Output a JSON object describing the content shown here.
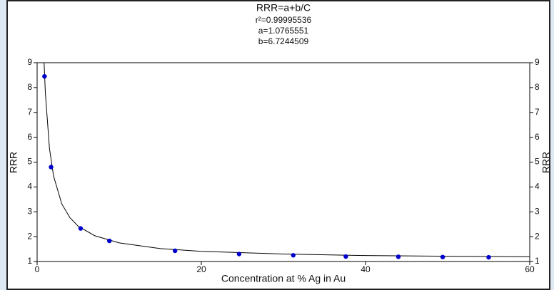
{
  "chart_data": {
    "type": "scatter",
    "title": "RRR=a+b/C",
    "annotations": [
      "r²=0.99995536",
      "a=1.0765551",
      "b=6.7244509"
    ],
    "x_label": "Concentration at % Ag  in Au",
    "y_label": "RRR",
    "y2_label": "RRR",
    "points": {
      "color": "#0000cc",
      "x": [
        0.9,
        1.7,
        5.3,
        8.8,
        16.8,
        24.6,
        31.2,
        37.6,
        44,
        49.4,
        55
      ],
      "y": [
        8.45,
        4.8,
        2.33,
        1.83,
        1.43,
        1.3,
        1.25,
        1.2,
        1.19,
        1.18,
        1.17
      ]
    },
    "curve": {
      "color": "#000000",
      "x": [
        0.85,
        1,
        1.5,
        2,
        3,
        4,
        5,
        7,
        10,
        15,
        20,
        30,
        40,
        50,
        60
      ],
      "y": [
        8.99,
        7.8,
        5.56,
        4.44,
        3.32,
        2.76,
        2.42,
        2.04,
        1.75,
        1.52,
        1.41,
        1.3,
        1.24,
        1.21,
        1.19
      ]
    },
    "xlim": [
      0,
      60
    ],
    "xticks": [
      0,
      20,
      40,
      60
    ],
    "ylim": [
      1,
      9
    ],
    "yticks": [
      1,
      2,
      3,
      4,
      5,
      6,
      7,
      8,
      9
    ],
    "y2lim": [
      1,
      9
    ],
    "y2ticks": [
      1,
      2,
      3,
      4,
      5,
      6,
      7,
      8,
      9
    ]
  }
}
